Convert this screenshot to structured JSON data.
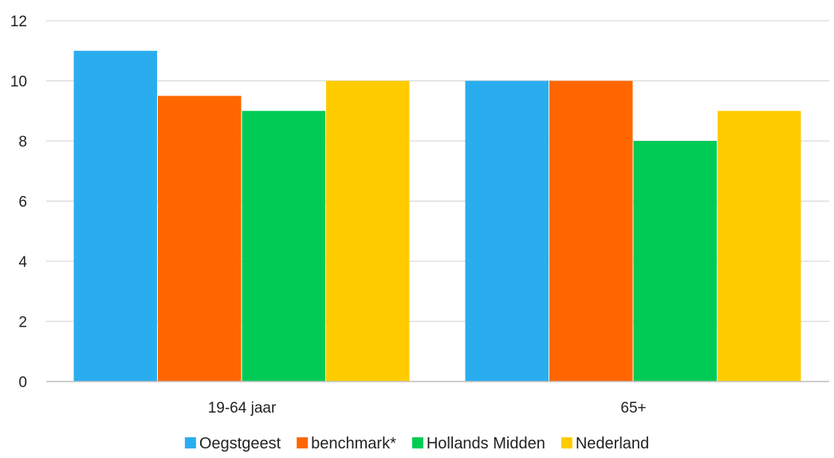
{
  "chart_data": {
    "type": "bar",
    "categories": [
      "19-64 jaar",
      "65+"
    ],
    "series": [
      {
        "name": "Oegstgeest",
        "color": "#2AADEF",
        "values": [
          11,
          10
        ]
      },
      {
        "name": "benchmark*",
        "color": "#FF6600",
        "values": [
          9.5,
          10
        ]
      },
      {
        "name": "Hollands Midden",
        "color": "#00CC55",
        "values": [
          9,
          8
        ]
      },
      {
        "name": "Nederland",
        "color": "#FFCC00",
        "values": [
          10,
          9
        ]
      }
    ],
    "ylim": [
      0,
      12
    ],
    "yticks": [
      "0",
      "2",
      "4",
      "6",
      "8",
      "10",
      "12"
    ],
    "grid": true,
    "legend_position": "bottom"
  }
}
